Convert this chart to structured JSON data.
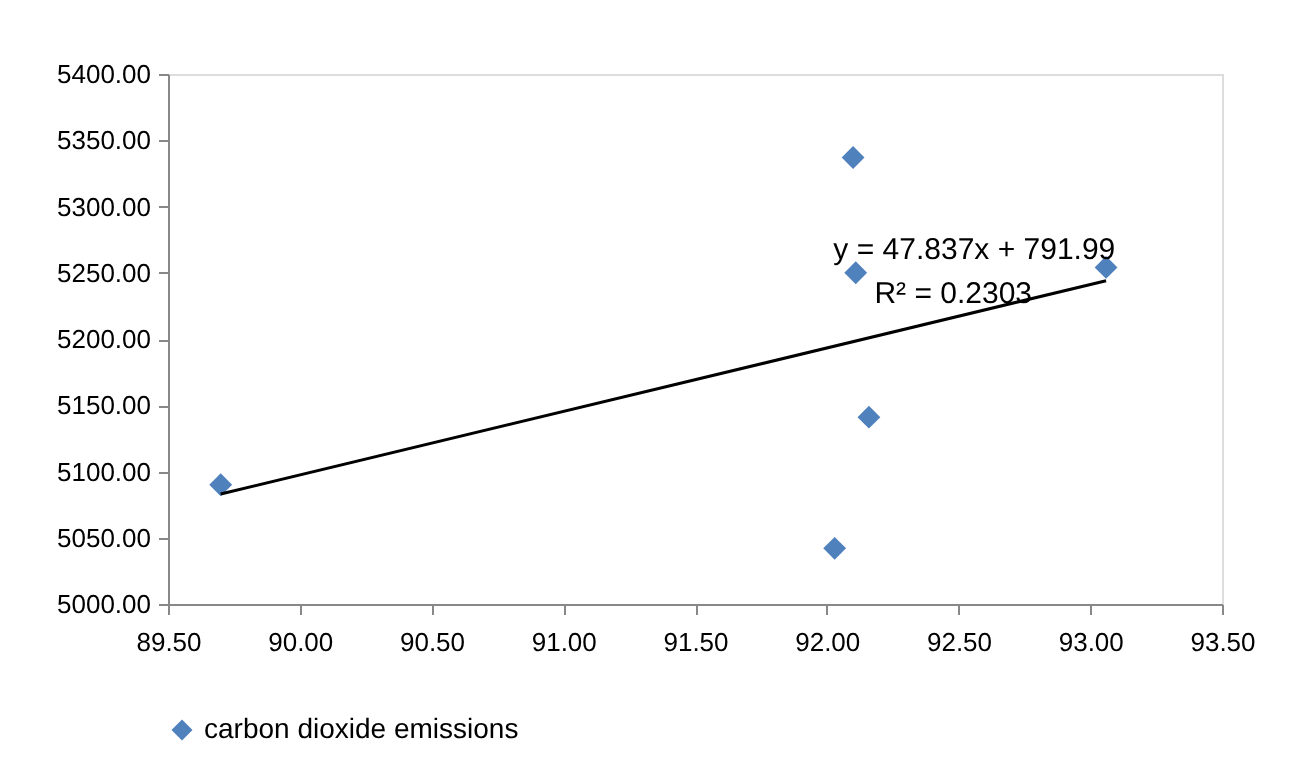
{
  "chart_data": {
    "type": "scatter",
    "x": [
      89.7,
      92.03,
      92.1,
      92.11,
      92.16,
      93.06
    ],
    "series": [
      {
        "name": "carbon dioxide emissions",
        "color": "#4f81bd",
        "marker": "diamond",
        "values": [
          5090,
          5042,
          5337,
          5250,
          5141,
          5254
        ]
      },
      {
        "type": "line",
        "color": "#000000",
        "line_style": "solid",
        "marker": "none",
        "x": [
          89.7,
          93.06
        ],
        "values": [
          5083,
          5244
        ]
      }
    ],
    "xlim": [
      89.5,
      93.5
    ],
    "xticks": [
      {
        "value": 89.5,
        "label": "89.50"
      },
      {
        "value": 90,
        "label": "90.00"
      },
      {
        "value": 90.5,
        "label": "90.50"
      },
      {
        "value": 91,
        "label": "91.00"
      },
      {
        "value": 91.5,
        "label": "91.50"
      },
      {
        "value": 92,
        "label": "92.00"
      },
      {
        "value": 92.5,
        "label": "92.50"
      },
      {
        "value": 93,
        "label": "93.00"
      },
      {
        "value": 93.5,
        "label": "93.50"
      }
    ],
    "ylim": [
      5000,
      5400
    ],
    "yticks": [
      {
        "value": 5000,
        "label": "5000.00"
      },
      {
        "value": 5050,
        "label": "5050.00"
      },
      {
        "value": 5100,
        "label": "5100.00"
      },
      {
        "value": 5150,
        "label": "5150.00"
      },
      {
        "value": 5200,
        "label": "5200.00"
      },
      {
        "value": 5250,
        "label": "5250.00"
      },
      {
        "value": 5300,
        "label": "5300.00"
      },
      {
        "value": 5350,
        "label": "5350.00"
      },
      {
        "value": 5400,
        "label": "5400.00"
      }
    ],
    "annotations": [
      "y = 47.837x + 791.99",
      "R² = 0.2303"
    ],
    "grid": false,
    "legend": "bottom"
  }
}
